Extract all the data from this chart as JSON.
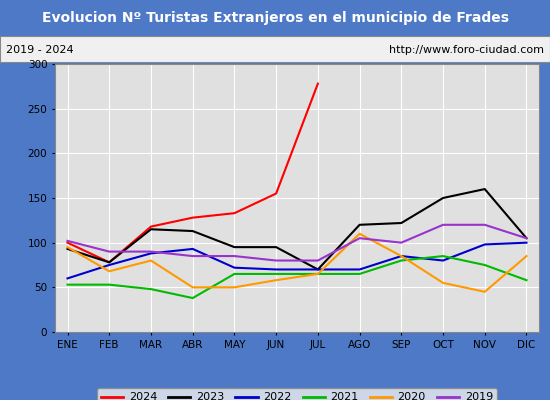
{
  "title": "Evolucion Nº Turistas Extranjeros en el municipio de Frades",
  "subtitle_left": "2019 - 2024",
  "subtitle_right": "http://www.foro-ciudad.com",
  "months": [
    "ENE",
    "FEB",
    "MAR",
    "ABR",
    "MAY",
    "JUN",
    "JUL",
    "AGO",
    "SEP",
    "OCT",
    "NOV",
    "DIC"
  ],
  "series": {
    "2024": [
      100,
      78,
      118,
      128,
      133,
      155,
      278,
      null,
      null,
      null,
      null,
      null
    ],
    "2023": [
      93,
      78,
      115,
      113,
      95,
      95,
      70,
      120,
      122,
      150,
      160,
      105
    ],
    "2022": [
      60,
      75,
      88,
      93,
      72,
      70,
      70,
      70,
      85,
      80,
      98,
      100
    ],
    "2021": [
      53,
      53,
      48,
      38,
      65,
      65,
      65,
      65,
      80,
      85,
      75,
      58
    ],
    "2020": [
      95,
      68,
      80,
      50,
      50,
      58,
      65,
      110,
      85,
      55,
      45,
      85
    ],
    "2019": [
      102,
      90,
      90,
      85,
      85,
      80,
      80,
      105,
      100,
      120,
      120,
      105
    ]
  },
  "colors": {
    "2024": "#ff0000",
    "2023": "#000000",
    "2022": "#0000cc",
    "2021": "#00bb00",
    "2020": "#ff9900",
    "2019": "#9933cc"
  },
  "ylim": [
    0,
    300
  ],
  "yticks": [
    0,
    50,
    100,
    150,
    200,
    250,
    300
  ],
  "title_bg": "#4d79c7",
  "title_color": "#ffffff",
  "plot_bg": "#e0e0e0",
  "grid_color": "#ffffff",
  "info_bg": "#f0f0f0"
}
